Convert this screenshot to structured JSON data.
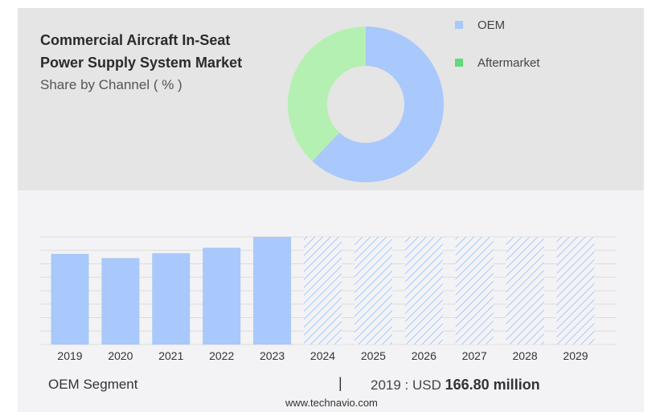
{
  "header": {
    "title_line1": "Commercial Aircraft In-Seat",
    "title_line2": "Power Supply System Market",
    "subtitle": "Share by Channel ( % )"
  },
  "colors": {
    "oem": "#a9c8fb",
    "aftermarket": "#b5f0b3",
    "legend_oem": "#a9c8fb",
    "legend_aftermarket": "#62d97a",
    "forecast_hatch": "#a9c8fb"
  },
  "chart_data": [
    {
      "type": "pie",
      "labels": [
        "OEM",
        "Aftermarket"
      ],
      "values": [
        62,
        38
      ]
    },
    {
      "type": "bar",
      "categories": [
        "2019",
        "2020",
        "2021",
        "2022",
        "2023",
        "2024",
        "2025",
        "2026",
        "2027",
        "2028",
        "2029"
      ],
      "values": [
        166.8,
        159,
        168,
        178,
        198,
        null,
        null,
        null,
        null,
        null,
        null
      ],
      "forecast": [
        false,
        false,
        false,
        false,
        false,
        true,
        true,
        true,
        true,
        true,
        true
      ],
      "ylim": [
        0,
        198
      ],
      "grid": true
    }
  ],
  "footer": {
    "segment_label": "OEM Segment",
    "divider": "|",
    "year_text": "2019 : USD",
    "value_text": "166.80 million",
    "source": "www.technavio.com"
  }
}
